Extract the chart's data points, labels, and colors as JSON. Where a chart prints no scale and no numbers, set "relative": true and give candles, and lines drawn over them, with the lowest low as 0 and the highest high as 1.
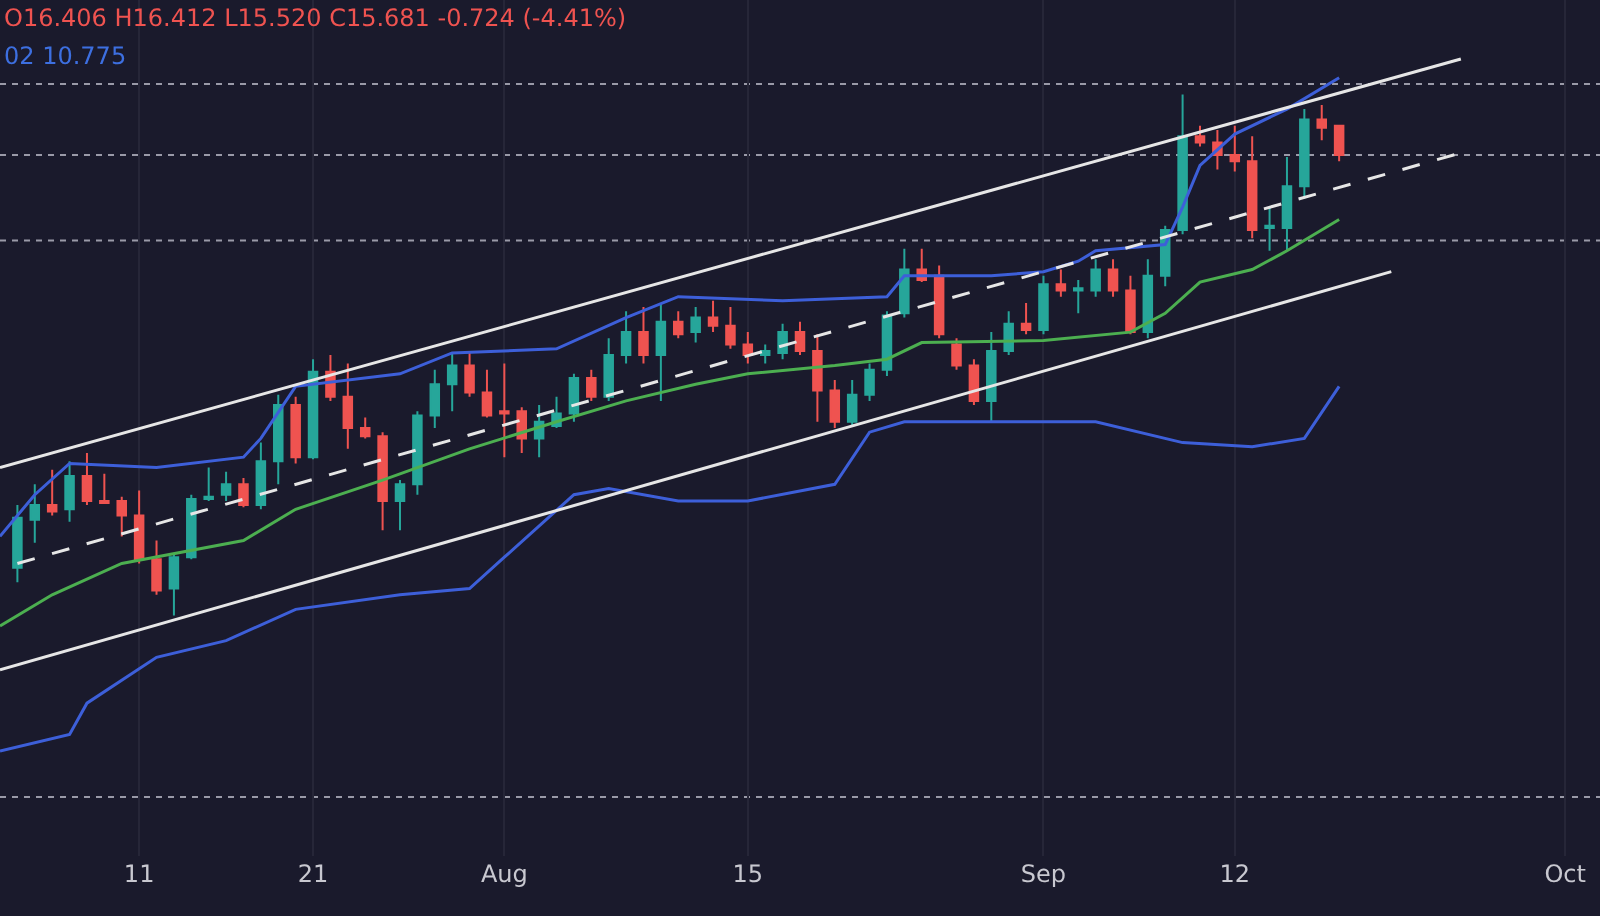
{
  "chart_data": {
    "type": "candlestick",
    "relative": true,
    "grid": "x",
    "annotations": [
      "O16.406 H16.412 L15.520 C15.681 -0.724 (-4.41%)",
      "02 10.775"
    ],
    "xlim": [
      "--07-03",
      "--10-03"
    ],
    "xticks": [
      {
        "value": "--07-11",
        "label": "11"
      },
      {
        "value": "--07-21",
        "label": "21"
      },
      {
        "value": "--08-01",
        "label": "Aug"
      },
      {
        "value": "--08-15",
        "label": "15"
      },
      {
        "value": "--09-01",
        "label": "Sep"
      },
      {
        "value": "--09-12",
        "label": "12"
      },
      {
        "value": "--10-01",
        "label": "Oct"
      }
    ],
    "x": [
      "--07-04",
      "--07-05",
      "--07-06",
      "--07-07",
      "--07-08",
      "--07-09",
      "--07-10",
      "--07-11",
      "--07-12",
      "--07-13",
      "--07-14",
      "--07-15",
      "--07-16",
      "--07-17",
      "--07-18",
      "--07-19",
      "--07-20",
      "--07-21",
      "--07-22",
      "--07-23",
      "--07-24",
      "--07-25",
      "--07-26",
      "--07-27",
      "--07-28",
      "--07-29",
      "--07-30",
      "--07-31",
      "--08-01",
      "--08-02",
      "--08-03",
      "--08-04",
      "--08-05",
      "--08-06",
      "--08-07",
      "--08-08",
      "--08-09",
      "--08-10",
      "--08-11",
      "--08-12",
      "--08-13",
      "--08-14",
      "--08-15",
      "--08-16",
      "--08-17",
      "--08-18",
      "--08-19",
      "--08-20",
      "--08-21",
      "--08-22",
      "--08-23",
      "--08-24",
      "--08-25",
      "--08-26",
      "--08-27",
      "--08-28",
      "--08-29",
      "--08-30",
      "--08-31",
      "--09-01",
      "--09-02",
      "--09-03",
      "--09-04",
      "--09-05",
      "--09-06",
      "--09-07",
      "--09-08",
      "--09-09",
      "--09-10",
      "--09-11",
      "--09-12",
      "--09-13",
      "--09-14",
      "--09-15",
      "--09-16",
      "--09-17",
      "--09-18"
    ],
    "ohlc": [
      [
        0.092,
        0.212,
        0.064,
        0.188
      ],
      [
        0.184,
        0.252,
        0.14,
        0.212
      ],
      [
        0.212,
        0.28,
        0.192,
        0.2
      ],
      [
        0.204,
        0.296,
        0.18,
        0.268
      ],
      [
        0.268,
        0.312,
        0.212,
        0.22
      ],
      [
        0.22,
        0.272,
        0.216,
        0.216
      ],
      [
        0.22,
        0.228,
        0.152,
        0.192
      ],
      [
        0.192,
        0.24,
        0.1,
        0.108
      ],
      [
        0.108,
        0.144,
        0.04,
        0.048
      ],
      [
        0.052,
        0.12,
        0,
        0.112
      ],
      [
        0.112,
        0.232,
        0.108,
        0.224
      ],
      [
        0.224,
        0.284,
        0.22,
        0.228
      ],
      [
        0.232,
        0.276,
        0.22,
        0.252
      ],
      [
        0.252,
        0.264,
        0.208,
        0.212
      ],
      [
        0.212,
        0.332,
        0.204,
        0.296
      ],
      [
        0.296,
        0.424,
        0.252,
        0.404
      ],
      [
        0.404,
        0.42,
        0.292,
        0.304
      ],
      [
        0.304,
        0.492,
        0.3,
        0.468
      ],
      [
        0.468,
        0.5,
        0.412,
        0.42
      ],
      [
        0.42,
        0.484,
        0.32,
        0.36
      ],
      [
        0.36,
        0.38,
        0.34,
        0.344
      ],
      [
        0.344,
        0.352,
        0.164,
        0.22
      ],
      [
        0.22,
        0.26,
        0.164,
        0.252
      ],
      [
        0.252,
        0.392,
        0.232,
        0.384
      ],
      [
        0.384,
        0.472,
        0.36,
        0.444
      ],
      [
        0.444,
        0.504,
        0.392,
        0.48
      ],
      [
        0.48,
        0.504,
        0.42,
        0.428
      ],
      [
        0.428,
        0.472,
        0.38,
        0.384
      ],
      [
        0.392,
        0.484,
        0.304,
        0.388
      ],
      [
        0.392,
        0.4,
        0.312,
        0.34
      ],
      [
        0.34,
        0.404,
        0.304,
        0.372
      ],
      [
        0.364,
        0.42,
        0.36,
        0.388
      ],
      [
        0.388,
        0.464,
        0.372,
        0.456
      ],
      [
        0.456,
        0.472,
        0.412,
        0.42
      ],
      [
        0.42,
        0.532,
        0.412,
        0.5
      ],
      [
        0.5,
        0.584,
        0.484,
        0.544
      ],
      [
        0.544,
        0.592,
        0.484,
        0.5
      ],
      [
        0.5,
        0.6,
        0.412,
        0.564
      ],
      [
        0.564,
        0.584,
        0.532,
        0.54
      ],
      [
        0.544,
        0.592,
        0.524,
        0.572
      ],
      [
        0.572,
        0.604,
        0.544,
        0.556
      ],
      [
        0.556,
        0.592,
        0.512,
        0.52
      ],
      [
        0.52,
        0.544,
        0.484,
        0.5
      ],
      [
        0.5,
        0.52,
        0.484,
        0.508
      ],
      [
        0.504,
        0.56,
        0.492,
        0.544
      ],
      [
        0.544,
        0.564,
        0.5,
        0.508
      ],
      [
        0.508,
        0.54,
        0.372,
        0.432
      ],
      [
        0.432,
        0.452,
        0.36,
        0.372
      ],
      [
        0.372,
        0.452,
        0.364,
        0.424
      ],
      [
        0.424,
        0.484,
        0.412,
        0.472
      ],
      [
        0.472,
        0.584,
        0.46,
        0.576
      ],
      [
        0.58,
        0.704,
        0.572,
        0.664
      ],
      [
        0.664,
        0.704,
        0.64,
        0.644
      ],
      [
        0.652,
        0.672,
        0.532,
        0.54
      ],
      [
        0.52,
        0.532,
        0.472,
        0.48
      ],
      [
        0.48,
        0.492,
        0.404,
        0.412
      ],
      [
        0.412,
        0.544,
        0.372,
        0.508
      ],
      [
        0.508,
        0.584,
        0.5,
        0.56
      ],
      [
        0.56,
        0.6,
        0.54,
        0.548
      ],
      [
        0.548,
        0.652,
        0.54,
        0.636
      ],
      [
        0.636,
        0.664,
        0.612,
        0.624
      ],
      [
        0.624,
        0.644,
        0.58,
        0.628
      ],
      [
        0.624,
        0.684,
        0.612,
        0.664
      ],
      [
        0.664,
        0.684,
        0.612,
        0.624
      ],
      [
        0.624,
        0.652,
        0.54,
        0.544
      ],
      [
        0.544,
        0.684,
        0.532,
        0.652
      ],
      [
        0.652,
        0.748,
        0.632,
        0.74
      ],
      [
        0.74,
        1,
        0.732,
        0.92
      ],
      [
        0.92,
        0.94,
        0.9,
        0.908
      ],
      [
        0.908,
        0.932,
        0.856,
        0.884
      ],
      [
        0.884,
        0.94,
        0.852,
        0.872
      ],
      [
        0.872,
        0.92,
        0.724,
        0.74
      ],
      [
        0.744,
        0.784,
        0.7,
        0.748
      ],
      [
        0.744,
        0.88,
        0.7,
        0.824
      ],
      [
        0.824,
        0.972,
        0.8,
        0.952
      ],
      [
        0.952,
        0.98,
        0.912,
        0.936
      ],
      [
        0.94,
        0.94,
        0.872,
        0.884
      ]
    ],
    "series": [
      {
        "type": "line",
        "color": "#3d5fd9",
        "x": [
          "--07-03",
          "--07-05",
          "--07-07",
          "--07-12",
          "--07-17",
          "--07-18",
          "--07-20",
          "--07-26",
          "--07-29",
          "--08-04",
          "--08-08",
          "--08-11",
          "--08-17",
          "--08-23",
          "--08-24",
          "--08-29",
          "--09-01",
          "--09-03",
          "--09-04",
          "--09-08",
          "--09-09",
          "--09-10",
          "--09-12",
          "--09-15",
          "--09-18"
        ],
        "values": [
          0.152,
          0.232,
          0.292,
          0.284,
          0.304,
          0.34,
          0.44,
          0.464,
          0.504,
          0.512,
          0.572,
          0.612,
          0.604,
          0.612,
          0.652,
          0.652,
          0.66,
          0.68,
          0.7,
          0.712,
          0.784,
          0.864,
          0.924,
          0.972,
          1.032
        ]
      },
      {
        "type": "line",
        "color": "#4caf50",
        "x": [
          "--07-03",
          "--07-06",
          "--07-10",
          "--07-17",
          "--07-20",
          "--07-25",
          "--07-30",
          "--08-04",
          "--08-08",
          "--08-12",
          "--08-15",
          "--08-20",
          "--08-23",
          "--08-25",
          "--09-01",
          "--09-06",
          "--09-08",
          "--09-10",
          "--09-13",
          "--09-15",
          "--09-18"
        ],
        "values": [
          -0.02,
          0.04,
          0.1,
          0.144,
          0.204,
          0.26,
          0.32,
          0.372,
          0.412,
          0.444,
          0.464,
          0.48,
          0.492,
          0.524,
          0.528,
          0.544,
          0.58,
          0.64,
          0.664,
          0.7,
          0.76
        ]
      },
      {
        "type": "line",
        "color": "#3d5fd9",
        "x": [
          "--07-03",
          "--07-07",
          "--07-08",
          "--07-12",
          "--07-16",
          "--07-20",
          "--07-26",
          "--07-30",
          "--08-01",
          "--08-05",
          "--08-07",
          "--08-11",
          "--08-15",
          "--08-20",
          "--08-22",
          "--08-24",
          "--09-04",
          "--09-09",
          "--09-13",
          "--09-16",
          "--09-18"
        ],
        "values": [
          -0.26,
          -0.228,
          -0.168,
          -0.08,
          -0.048,
          0.012,
          0.04,
          0.052,
          0.112,
          0.232,
          0.244,
          0.22,
          0.22,
          0.252,
          0.352,
          0.372,
          0.372,
          0.332,
          0.324,
          0.34,
          0.44
        ]
      },
      {
        "type": "line",
        "color": "#e6e6e6",
        "x": [
          "--07-03",
          "--09-25"
        ],
        "values": [
          0.284,
          1.068
        ]
      },
      {
        "type": "line",
        "color": "#e6e6e6",
        "line_style": "dashed",
        "x": [
          "--07-04",
          "--09-25"
        ],
        "values": [
          0.1,
          0.888
        ]
      },
      {
        "type": "line",
        "color": "#e6e6e6",
        "x": [
          "--07-03",
          "--09-21"
        ],
        "values": [
          -0.104,
          0.66
        ]
      }
    ],
    "ref_lines": [
      {
        "axis": "y",
        "value": 1.02,
        "color": "#9a9aa8",
        "line_style": "dotted"
      },
      {
        "axis": "y",
        "value": 0.884,
        "color": "#9a9aa8",
        "line_style": "dotted"
      },
      {
        "axis": "y",
        "value": 0.72,
        "color": "#9a9aa8",
        "line_style": "dotted"
      },
      {
        "axis": "y",
        "value": -0.348,
        "color": "#9a9aa8",
        "line_style": "dotted"
      }
    ]
  }
}
